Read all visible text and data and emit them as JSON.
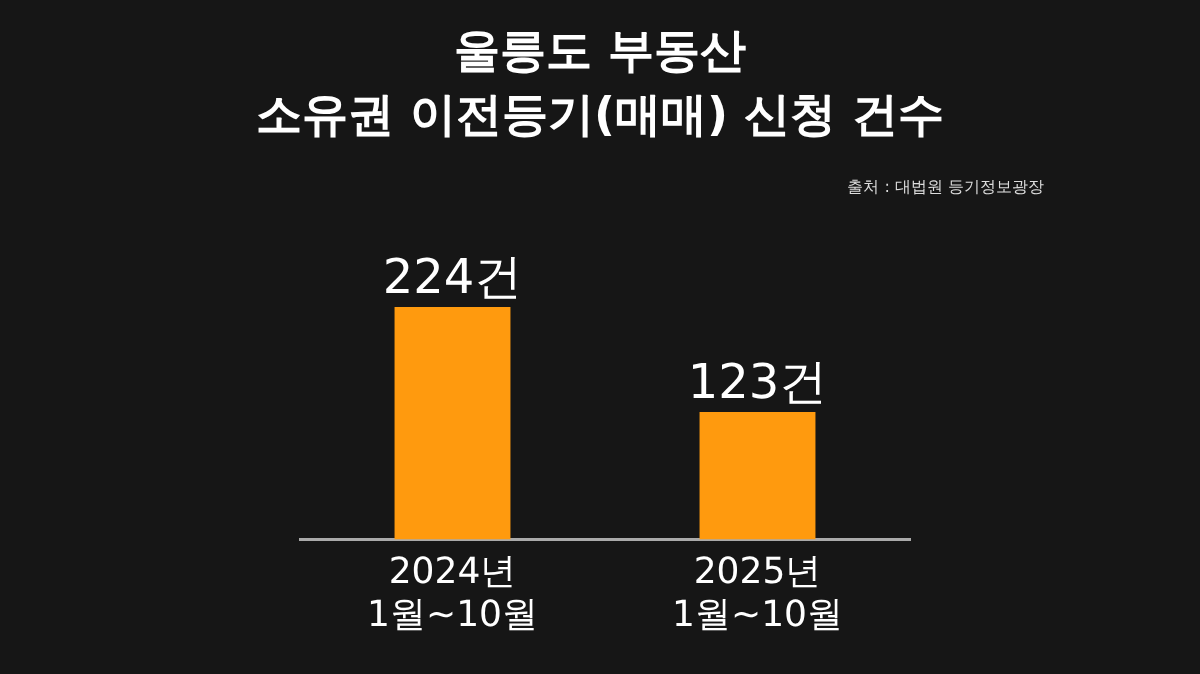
{
  "chart_data": {
    "type": "bar",
    "title": "울릉도 부동산\n소유권 이전등기(매매) 신청 건수",
    "categories": [
      "2024년\n1월~10월",
      "2025년\n1월~10월"
    ],
    "values": [
      224,
      123
    ],
    "color": "#ff9a0e",
    "value_labels": [
      "224건",
      "123건"
    ],
    "annotations": [
      "출처 : 대법원 등기정보광장"
    ]
  }
}
